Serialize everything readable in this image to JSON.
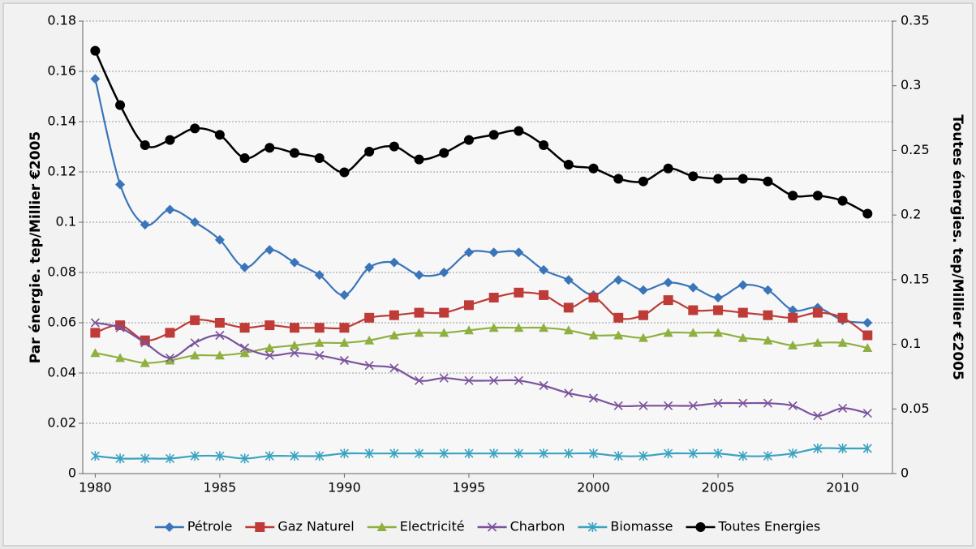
{
  "chart_data": {
    "type": "line",
    "x": [
      1980,
      1981,
      1982,
      1983,
      1984,
      1985,
      1986,
      1987,
      1988,
      1989,
      1990,
      1991,
      1992,
      1993,
      1994,
      1995,
      1996,
      1997,
      1998,
      1999,
      2000,
      2001,
      2002,
      2003,
      2004,
      2005,
      2006,
      2007,
      2008,
      2009,
      2010,
      2011
    ],
    "xlim": [
      1979.5,
      2012
    ],
    "xticks": [
      1980,
      1985,
      1990,
      1995,
      2000,
      2005,
      2010
    ],
    "ylim": [
      0,
      0.18
    ],
    "yticks": [
      0,
      0.02,
      0.04,
      0.06,
      0.08,
      0.1,
      0.12,
      0.14,
      0.16,
      0.18
    ],
    "y2lim": [
      0,
      0.35
    ],
    "y2ticks": [
      0,
      0.05,
      0.1,
      0.15,
      0.2,
      0.25,
      0.3,
      0.35
    ],
    "ylabel": "Par énergie. tep/Millier €2005",
    "y2label": "Toutes énergies. tep/Millier €2005",
    "grid": true,
    "legend": "bottom",
    "series": [
      {
        "name": "Pétrole",
        "color": "#3a75b9",
        "marker": "diamond",
        "values": [
          0.157,
          0.115,
          0.099,
          0.105,
          0.1,
          0.093,
          0.082,
          0.089,
          0.084,
          0.079,
          0.071,
          0.082,
          0.084,
          0.079,
          0.08,
          0.088,
          0.088,
          0.088,
          0.081,
          0.077,
          0.071,
          0.077,
          0.073,
          0.076,
          0.074,
          0.07,
          0.075,
          0.073,
          0.065,
          0.066,
          0.061,
          0.06
        ]
      },
      {
        "name": "Gaz Naturel",
        "color": "#be3b38",
        "marker": "square",
        "values": [
          0.056,
          0.059,
          0.053,
          0.056,
          0.061,
          0.06,
          0.058,
          0.059,
          0.058,
          0.058,
          0.058,
          0.062,
          0.063,
          0.064,
          0.064,
          0.067,
          0.07,
          0.072,
          0.071,
          0.066,
          0.07,
          0.062,
          0.063,
          0.069,
          0.065,
          0.065,
          0.064,
          0.063,
          0.062,
          0.064,
          0.062,
          0.055
        ]
      },
      {
        "name": "Electricité",
        "color": "#8fb040",
        "marker": "triangle",
        "values": [
          0.048,
          0.046,
          0.044,
          0.045,
          0.047,
          0.047,
          0.048,
          0.05,
          0.051,
          0.052,
          0.052,
          0.053,
          0.055,
          0.056,
          0.056,
          0.057,
          0.058,
          0.058,
          0.058,
          0.057,
          0.055,
          0.055,
          0.054,
          0.056,
          0.056,
          0.056,
          0.054,
          0.053,
          0.051,
          0.052,
          0.052,
          0.05
        ]
      },
      {
        "name": "Charbon",
        "color": "#7a539c",
        "marker": "x",
        "values": [
          0.06,
          0.058,
          0.052,
          0.046,
          0.052,
          0.055,
          0.05,
          0.047,
          0.048,
          0.047,
          0.045,
          0.043,
          0.042,
          0.037,
          0.038,
          0.037,
          0.037,
          0.037,
          0.035,
          0.032,
          0.03,
          0.027,
          0.027,
          0.027,
          0.027,
          0.028,
          0.028,
          0.028,
          0.027,
          0.023,
          0.026,
          0.024
        ]
      },
      {
        "name": "Biomasse",
        "color": "#3aa3c0",
        "marker": "star",
        "values": [
          0.007,
          0.006,
          0.006,
          0.006,
          0.007,
          0.007,
          0.006,
          0.007,
          0.007,
          0.007,
          0.008,
          0.008,
          0.008,
          0.008,
          0.008,
          0.008,
          0.008,
          0.008,
          0.008,
          0.008,
          0.008,
          0.007,
          0.007,
          0.008,
          0.008,
          0.008,
          0.007,
          0.007,
          0.008,
          0.01,
          0.01,
          0.01
        ]
      },
      {
        "name": "Toutes Energies",
        "color": "#000000",
        "marker": "circle",
        "axis": "y2",
        "values": [
          0.327,
          0.285,
          0.254,
          0.258,
          0.267,
          0.262,
          0.244,
          0.252,
          0.248,
          0.244,
          0.233,
          0.249,
          0.253,
          0.243,
          0.248,
          0.258,
          0.262,
          0.265,
          0.254,
          0.239,
          0.236,
          0.228,
          0.226,
          0.236,
          0.23,
          0.228,
          0.228,
          0.226,
          0.215,
          0.215,
          0.211,
          0.201
        ]
      }
    ]
  }
}
